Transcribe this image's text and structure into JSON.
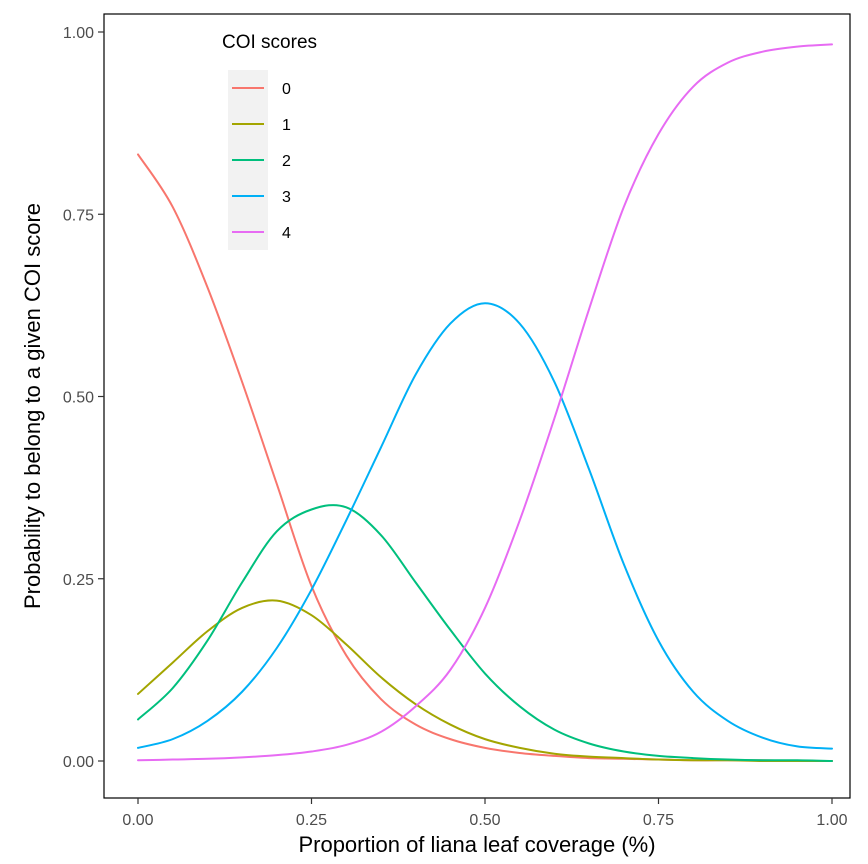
{
  "chart_data": {
    "type": "line",
    "xlabel": "Proportion of liana leaf coverage (%)",
    "ylabel": "Probability to belong to a given COI score",
    "xlim": [
      0,
      1
    ],
    "ylim": [
      0,
      1
    ],
    "x_ticks": [
      "0.00",
      "0.25",
      "0.50",
      "0.75",
      "1.00"
    ],
    "y_ticks": [
      "0.00",
      "0.25",
      "0.50",
      "0.75",
      "1.00"
    ],
    "grid": false,
    "legend": {
      "title": "COI scores",
      "position": "top-left"
    },
    "x": [
      0.0,
      0.05,
      0.1,
      0.15,
      0.2,
      0.25,
      0.3,
      0.35,
      0.4,
      0.45,
      0.5,
      0.55,
      0.6,
      0.65,
      0.7,
      0.75,
      0.8,
      0.85,
      0.9,
      0.95,
      1.0
    ],
    "series": [
      {
        "name": "0",
        "color": "#f8766d",
        "values": [
          0.832,
          0.76,
          0.65,
          0.52,
          0.38,
          0.24,
          0.145,
          0.085,
          0.05,
          0.03,
          0.018,
          0.011,
          0.007,
          0.004,
          0.003,
          0.002,
          0.001,
          0.001,
          0.001,
          0.0,
          0.0
        ]
      },
      {
        "name": "1",
        "color": "#a3a500",
        "values": [
          0.092,
          0.135,
          0.178,
          0.21,
          0.22,
          0.2,
          0.16,
          0.115,
          0.078,
          0.05,
          0.03,
          0.018,
          0.01,
          0.006,
          0.004,
          0.002,
          0.001,
          0.001,
          0.0,
          0.0,
          0.0
        ]
      },
      {
        "name": "2",
        "color": "#00bf7d",
        "values": [
          0.057,
          0.1,
          0.165,
          0.245,
          0.315,
          0.345,
          0.348,
          0.31,
          0.245,
          0.18,
          0.12,
          0.075,
          0.043,
          0.024,
          0.013,
          0.007,
          0.004,
          0.002,
          0.001,
          0.001,
          0.0
        ]
      },
      {
        "name": "3",
        "color": "#00b0f6",
        "values": [
          0.018,
          0.03,
          0.055,
          0.095,
          0.155,
          0.235,
          0.33,
          0.43,
          0.53,
          0.6,
          0.628,
          0.6,
          0.52,
          0.4,
          0.27,
          0.165,
          0.095,
          0.055,
          0.032,
          0.02,
          0.017
        ]
      },
      {
        "name": "4",
        "color": "#e76bf3",
        "values": [
          0.001,
          0.002,
          0.003,
          0.005,
          0.008,
          0.013,
          0.022,
          0.04,
          0.075,
          0.125,
          0.21,
          0.33,
          0.47,
          0.62,
          0.76,
          0.86,
          0.925,
          0.958,
          0.973,
          0.98,
          0.983
        ]
      }
    ]
  }
}
